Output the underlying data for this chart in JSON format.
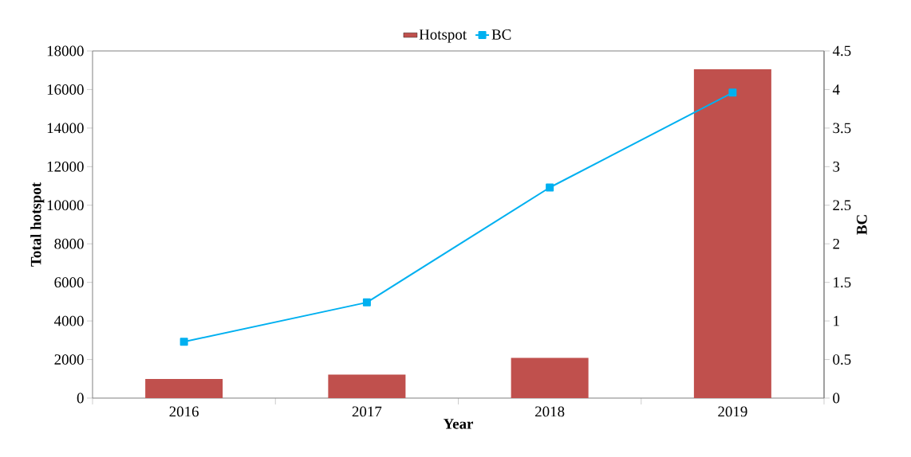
{
  "chart_data": {
    "type": "bar",
    "categories": [
      "2016",
      "2017",
      "2018",
      "2019"
    ],
    "xlabel": "Year",
    "ylabel": "Total hotspot",
    "y2label": "BC",
    "series": [
      {
        "name": "Hotspot",
        "color": "#c0504d",
        "values": [
          990,
          1220,
          2090,
          17050
        ]
      },
      {
        "name": "BC",
        "type": "line",
        "axis": "y2",
        "color": "#00b0f0",
        "values": [
          0.73,
          1.24,
          2.73,
          3.96
        ]
      }
    ],
    "ylim": [
      0,
      18000
    ],
    "yticks": [
      0,
      2000,
      4000,
      6000,
      8000,
      10000,
      12000,
      14000,
      16000,
      18000
    ],
    "y2lim": [
      0,
      4.5
    ],
    "y2ticks": [
      0,
      0.5,
      1,
      1.5,
      2,
      2.5,
      3,
      3.5,
      4,
      4.5
    ],
    "marker": "square",
    "legend": "top",
    "grid": false
  }
}
